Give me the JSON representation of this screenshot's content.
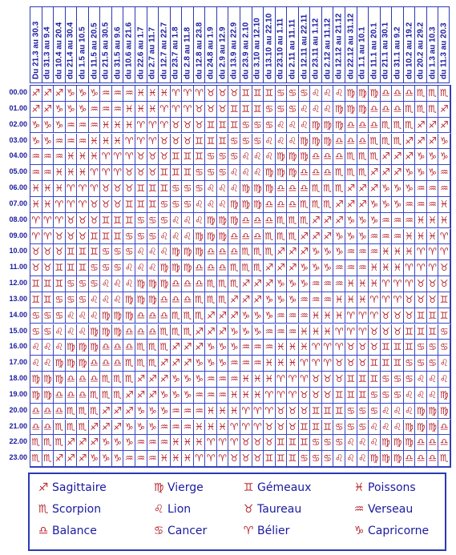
{
  "columns": [
    "Du 21.3 au 30.3",
    "du 31.3 au 9.4",
    "du 10.4 au 20.4",
    "du 21.4 au 30.4",
    "du 1.5 au 10.5",
    "du 11.5 au 20.5",
    "du 21.5 au 30.5",
    "du 31.5 au 9.6",
    "du 10.6 au 21.6",
    "du 22.6 au 1.7",
    "du 2.7 au 11.7",
    "du 12.7 au 22.7",
    "du 23.7 au 1.8",
    "du 2.8 au 11.8",
    "du 12.8 au 23.8",
    "du 24.8 au 1.9",
    "du 2.9 au 12.9",
    "du 13.9 au 22.9",
    "du 23.9 au 2.10",
    "du 3.10 au 12.10",
    "du 13.10 au 22.10",
    "du 23.10 au 1.11",
    "du 2.11 au 11.11",
    "du 12.11 au 22.11",
    "du 23.11 au 1.12",
    "du 2.12 au 11.12",
    "du 12.12 au 21.12",
    "du 22.12 au 31.12",
    "du 1.1 au 10.1",
    "du 11.1 au 20.1",
    "du 21.1 au 30.1",
    "du 31.1 au 9.2",
    "du 10.2 au 19.2",
    "du 20.2 au 29.2",
    "du 1.3 au 10.3",
    "du 11.3 au 20.3"
  ],
  "rows": [
    "00.00",
    "01.00",
    "02.00",
    "03.00",
    "04.00",
    "05.00",
    "06.00",
    "07.00",
    "08.00",
    "09.00",
    "10.00",
    "11.00",
    "12.00",
    "13.00",
    "14.00",
    "15.00",
    "16.00",
    "17.00",
    "18.00",
    "19.00",
    "20.00",
    "21.00",
    "22.00",
    "23.00"
  ],
  "symbols": {
    "sag": "♐",
    "sco": "♏",
    "bal": "♎",
    "vie": "♍",
    "lio": "♌",
    "can": "♋",
    "gem": "♊",
    "tau": "♉",
    "bel": "♈",
    "poi": "♓",
    "ver": "♒",
    "cap": "♑"
  },
  "legend": [
    {
      "key": "sag",
      "label": "Sagittaire"
    },
    {
      "key": "sco",
      "label": "Scorpion"
    },
    {
      "key": "bal",
      "label": "Balance"
    },
    {
      "key": "vie",
      "label": "Vierge"
    },
    {
      "key": "lio",
      "label": "Lion"
    },
    {
      "key": "can",
      "label": "Cancer"
    },
    {
      "key": "gem",
      "label": "Gémeaux"
    },
    {
      "key": "tau",
      "label": "Taureau"
    },
    {
      "key": "bel",
      "label": "Bélier"
    },
    {
      "key": "poi",
      "label": "Poissons"
    },
    {
      "key": "ver",
      "label": "Verseau"
    },
    {
      "key": "cap",
      "label": "Capricorne"
    }
  ],
  "order": [
    "bel",
    "tau",
    "gem",
    "can",
    "lio",
    "vie",
    "bal",
    "sco",
    "sag",
    "cap",
    "ver",
    "poi"
  ]
}
